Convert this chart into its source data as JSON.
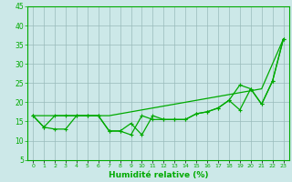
{
  "xlabel": "Humidité relative (%)",
  "x": [
    0,
    1,
    2,
    3,
    4,
    5,
    6,
    7,
    8,
    9,
    10,
    11,
    12,
    13,
    14,
    15,
    16,
    17,
    18,
    19,
    20,
    21,
    22,
    23
  ],
  "line1": [
    16.5,
    13.5,
    16.5,
    16.5,
    16.5,
    16.5,
    16.5,
    12.5,
    12.5,
    11.5,
    16.5,
    15.5,
    15.5,
    15.5,
    15.5,
    17.0,
    17.5,
    18.5,
    20.5,
    18.0,
    23.5,
    19.5,
    25.5,
    36.5
  ],
  "line2": [
    16.5,
    13.5,
    13.0,
    13.0,
    16.5,
    16.5,
    16.5,
    12.5,
    12.5,
    14.5,
    11.5,
    16.5,
    15.5,
    15.5,
    15.5,
    17.0,
    17.5,
    18.5,
    20.5,
    24.5,
    23.5,
    19.5,
    25.5,
    36.5
  ],
  "line3": [
    16.5,
    16.5,
    16.5,
    16.5,
    16.5,
    16.5,
    16.5,
    16.5,
    17.0,
    17.5,
    18.0,
    18.5,
    19.0,
    19.5,
    20.0,
    20.5,
    21.0,
    21.5,
    22.0,
    22.5,
    23.0,
    23.5,
    30.0,
    36.5
  ],
  "ylim": [
    5,
    45
  ],
  "xlim": [
    -0.5,
    23.5
  ],
  "yticks": [
    5,
    10,
    15,
    20,
    25,
    30,
    35,
    40,
    45
  ],
  "xtick_labels": [
    "0",
    "1",
    "2",
    "3",
    "4",
    "5",
    "6",
    "7",
    "8",
    "9",
    "10",
    "11",
    "12",
    "13",
    "14",
    "15",
    "16",
    "17",
    "18",
    "19",
    "20",
    "21",
    "22",
    "23"
  ],
  "line_color": "#00aa00",
  "bg_color": "#cce8e8",
  "grid_color": "#99bbbb",
  "marker_size": 3,
  "lw": 0.9
}
